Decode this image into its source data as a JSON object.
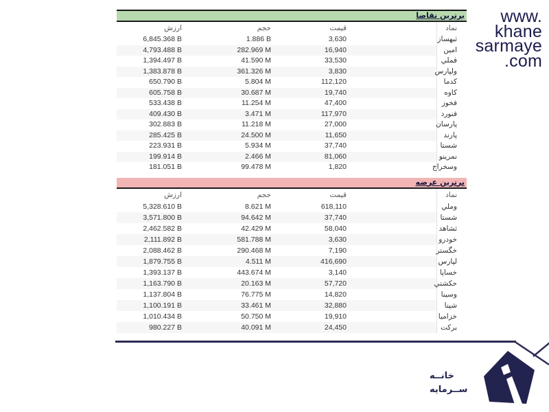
{
  "watermark": {
    "line1": "www.",
    "line2": "khane",
    "line3": "sarmaye",
    "line4": ".com"
  },
  "colors": {
    "demand_header": "#b8d9ae",
    "supply_header": "#f2b5b5",
    "rule_navy": "#2c2c58",
    "watermark_navy": "#1c1c4e"
  },
  "chart_data": [
    {
      "type": "table",
      "title": "برترین تقاضا",
      "columns": [
        "نماد",
        "قیمت",
        "حجم",
        "ارزش"
      ],
      "rows": [
        {
          "symbol": "ثبهساز",
          "price": "3,630",
          "volume": "1.886 B",
          "value": "6,845.368 B"
        },
        {
          "symbol": "امین",
          "price": "16,940",
          "volume": "282.969 M",
          "value": "4,793.488 B"
        },
        {
          "symbol": "فملي",
          "price": "33,530",
          "volume": "41.590 M",
          "value": "1,394.497 B"
        },
        {
          "symbol": "ولپارس",
          "price": "3,830",
          "volume": "361.326 M",
          "value": "1,383.878 B"
        },
        {
          "symbol": "کدما",
          "price": "112,120",
          "volume": "5.804 M",
          "value": "650.790 B"
        },
        {
          "symbol": "کاوه",
          "price": "19,740",
          "volume": "30.687 M",
          "value": "605.758 B"
        },
        {
          "symbol": "فخوز",
          "price": "47,400",
          "volume": "11.254 M",
          "value": "533.438 B"
        },
        {
          "symbol": "فنورد",
          "price": "117,970",
          "volume": "3.471 M",
          "value": "409.430 B"
        },
        {
          "symbol": "پارسان",
          "price": "27,000",
          "volume": "11.218 M",
          "value": "302.883 B"
        },
        {
          "symbol": "پارند",
          "price": "11,650",
          "volume": "24.500 M",
          "value": "285.425 B"
        },
        {
          "symbol": "شستا",
          "price": "37,740",
          "volume": "5.934 M",
          "value": "223.931 B"
        },
        {
          "symbol": "نمرینو",
          "price": "81,060",
          "volume": "2.466 M",
          "value": "199.914 B"
        },
        {
          "symbol": "وسخراج",
          "price": "1,820",
          "volume": "99.478 M",
          "value": "181.051 B"
        }
      ]
    },
    {
      "type": "table",
      "title": "برترین عرضه",
      "columns": [
        "نماد",
        "قیمت",
        "حجم",
        "ارزش"
      ],
      "rows": [
        {
          "symbol": "وملي",
          "price": "618,110",
          "volume": "8.621 M",
          "value": "5,328.610 B"
        },
        {
          "symbol": "شستا",
          "price": "37,740",
          "volume": "94.642 M",
          "value": "3,571.800 B"
        },
        {
          "symbol": "ثشاهد",
          "price": "58,040",
          "volume": "42.429 M",
          "value": "2,462.582 B"
        },
        {
          "symbol": "خودرو",
          "price": "3,630",
          "volume": "581.788 M",
          "value": "2,111.892 B"
        },
        {
          "symbol": "خگستر",
          "price": "7,190",
          "volume": "290.468 M",
          "value": "2,088.462 B"
        },
        {
          "symbol": "لپارس",
          "price": "416,690",
          "volume": "4.511 M",
          "value": "1,879.755 B"
        },
        {
          "symbol": "خساپا",
          "price": "3,140",
          "volume": "443.674 M",
          "value": "1,393.137 B"
        },
        {
          "symbol": "حکشتي",
          "price": "57,720",
          "volume": "20.163 M",
          "value": "1,163.790 B"
        },
        {
          "symbol": "وسینا",
          "price": "14,820",
          "volume": "76.775 M",
          "value": "1,137.804 B"
        },
        {
          "symbol": "شپنا",
          "price": "32,880",
          "volume": "33.461 M",
          "value": "1,100.191 B"
        },
        {
          "symbol": "خزاميا",
          "price": "19,910",
          "volume": "50.750 M",
          "value": "1,010.434 B"
        },
        {
          "symbol": "برکت",
          "price": "24,450",
          "volume": "40.091 M",
          "value": "980.227 B"
        }
      ]
    }
  ],
  "logo": {
    "text_line1": "خانــه",
    "text_line2": "ســرمایه"
  }
}
